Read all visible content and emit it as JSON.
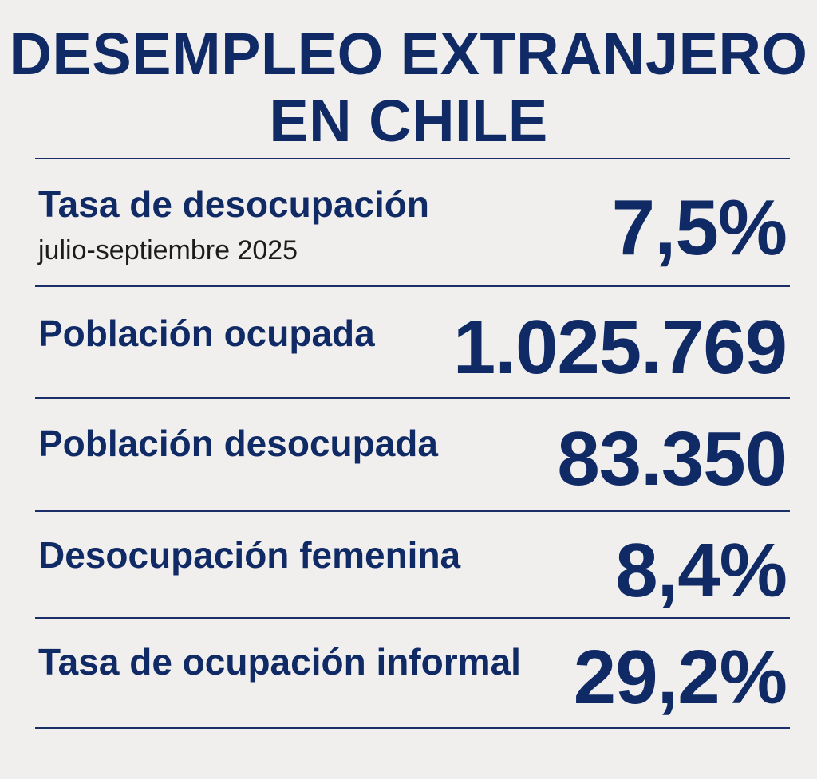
{
  "title": {
    "line1": "DESEMPLEO EXTRANJERO",
    "line2": "EN CHILE"
  },
  "rows": [
    {
      "label": "Tasa de desocupación",
      "sublabel": "julio-septiembre 2025",
      "value": "7,5%"
    },
    {
      "label": "Población ocupada",
      "value": "1.025.769"
    },
    {
      "label": "Población desocupada",
      "value": "83.350"
    },
    {
      "label": "Desocupación femenina",
      "value": "8,4%"
    },
    {
      "label": "Tasa de ocupación informal",
      "value": "29,2%"
    }
  ],
  "colors": {
    "background": "#f0efed",
    "primary": "#102a66",
    "subtext": "#1c1c1c",
    "rule": "#1a2f68"
  }
}
